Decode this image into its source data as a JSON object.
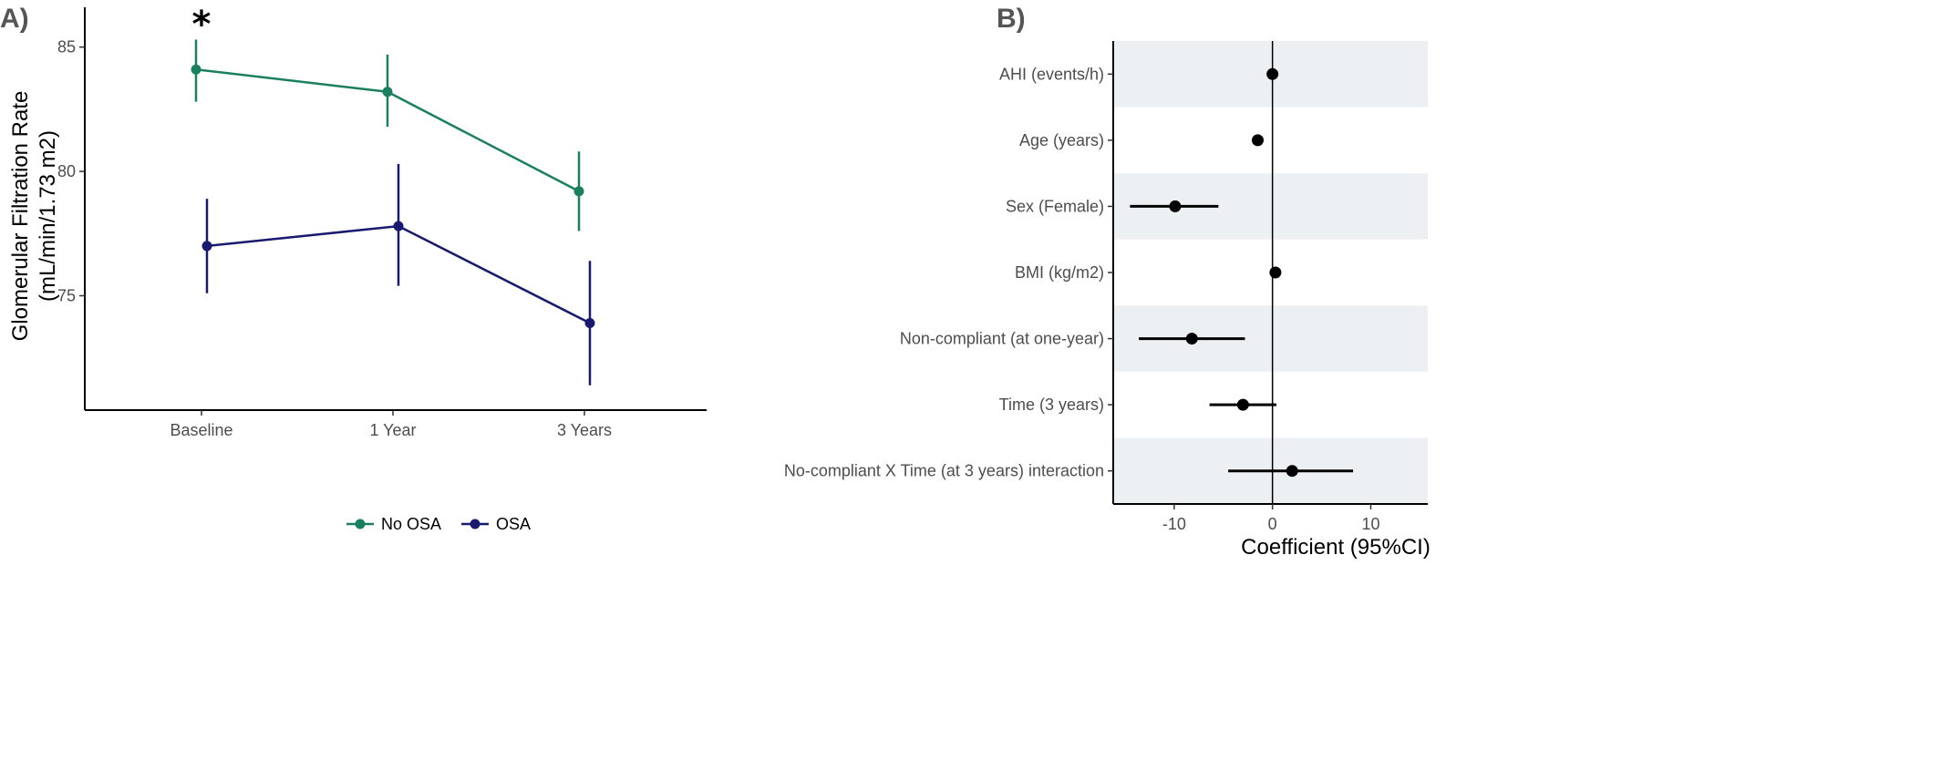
{
  "chart_data": [
    {
      "type": "line",
      "panel_label": "A)",
      "ylabel_line1": "Glomerular Filtration Rate",
      "ylabel_line2": "(mL/min/1.73 m2)",
      "categories": [
        "Baseline",
        "1 Year",
        "3 Years"
      ],
      "yticks": [
        75,
        80,
        85
      ],
      "ylim": [
        70.4,
        86.6
      ],
      "annotation": "*",
      "annotation_category": "Baseline",
      "legend": "bottom",
      "grid": false,
      "series": [
        {
          "name": "No OSA",
          "color": "#1a7f5e",
          "values": [
            84.1,
            83.2,
            79.2
          ],
          "ci_low": [
            82.8,
            81.8,
            77.6
          ],
          "ci_high": [
            85.3,
            84.7,
            80.8
          ]
        },
        {
          "name": "OSA",
          "color": "#191970",
          "values": [
            77.0,
            77.8,
            73.9
          ],
          "ci_low": [
            75.1,
            75.4,
            71.4
          ],
          "ci_high": [
            78.9,
            80.3,
            76.4
          ]
        }
      ]
    },
    {
      "type": "scatter",
      "panel_label": "B)",
      "xlabel": "Coefficient (95%CI)",
      "xticks": [
        -10,
        0,
        10
      ],
      "xlim": [
        -16.2,
        15.8
      ],
      "reference_line": 0,
      "grid": false,
      "point_color": "#000000",
      "band_color": "#edf0f3",
      "items": [
        {
          "label": "AHI (events/h)",
          "estimate": 0.0,
          "ci": [
            0.0,
            0.0
          ]
        },
        {
          "label": "Age (years)",
          "estimate": -1.5,
          "ci": [
            -1.5,
            -1.5
          ]
        },
        {
          "label": "Sex (Female)",
          "estimate": -9.9,
          "ci": [
            -14.5,
            -5.5
          ]
        },
        {
          "label": "BMI (kg/m2)",
          "estimate": 0.3,
          "ci": [
            0.3,
            0.3
          ]
        },
        {
          "label": "Non-compliant (at one-year)",
          "estimate": -8.2,
          "ci": [
            -13.6,
            -2.8
          ]
        },
        {
          "label": "Time (3 years)",
          "estimate": -3.0,
          "ci": [
            -6.4,
            0.4
          ]
        },
        {
          "label": "No-compliant X Time (at 3 years) interaction",
          "estimate": 2.0,
          "ci": [
            -4.5,
            8.2
          ]
        }
      ]
    }
  ]
}
